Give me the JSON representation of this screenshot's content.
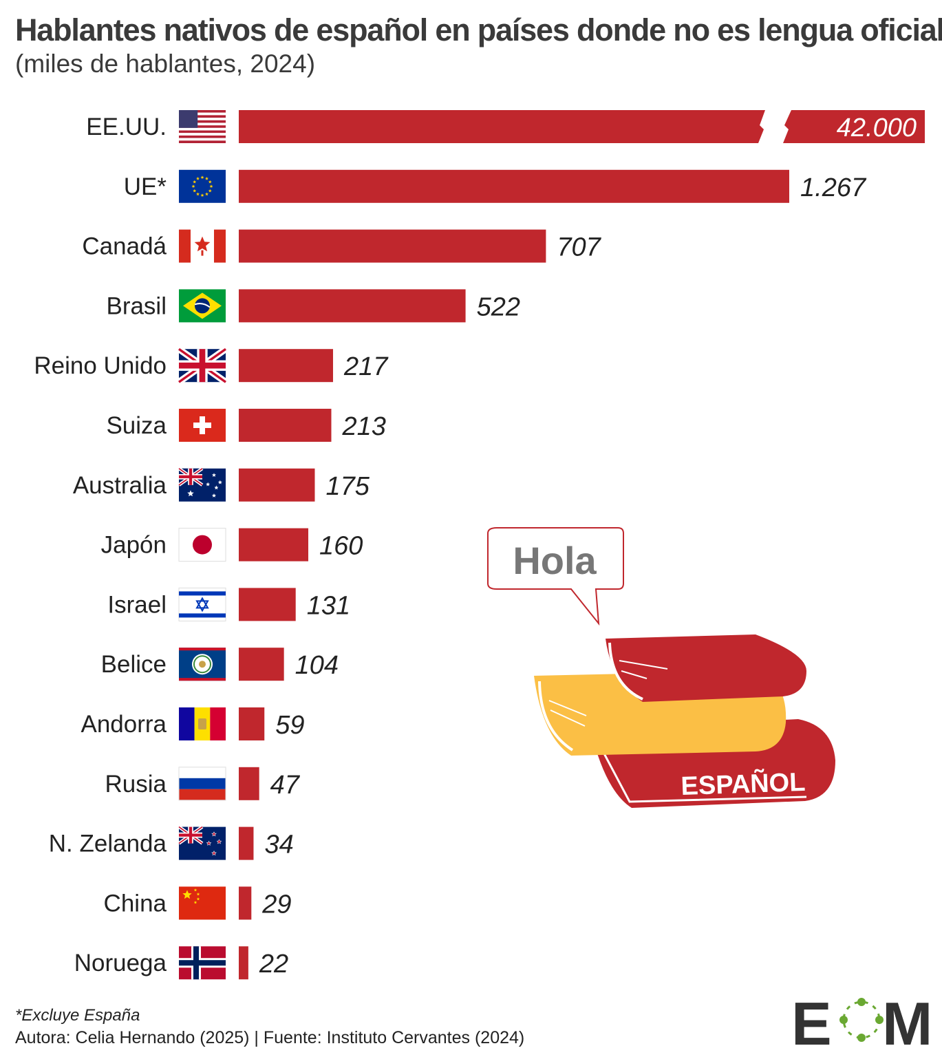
{
  "header": {
    "title": "Hablantes nativos de español en países donde no es lengua oficial",
    "subtitle": "(miles de hablantes, 2024)"
  },
  "chart_data": {
    "type": "bar",
    "orientation": "horizontal",
    "categories": [
      "EE.UU.",
      "UE*",
      "Canadá",
      "Brasil",
      "Reino Unido",
      "Suiza",
      "Australia",
      "Japón",
      "Israel",
      "Belice",
      "Andorra",
      "Rusia",
      "N. Zelanda",
      "China",
      "Noruega"
    ],
    "values": [
      42000,
      1267,
      707,
      522,
      217,
      213,
      175,
      160,
      131,
      104,
      59,
      47,
      34,
      29,
      22
    ],
    "value_labels": [
      "42.000",
      "1.267",
      "707",
      "522",
      "217",
      "213",
      "175",
      "160",
      "131",
      "104",
      "59",
      "47",
      "34",
      "29",
      "22"
    ],
    "flags": [
      "us-flag-icon",
      "eu-flag-icon",
      "canada-flag-icon",
      "brazil-flag-icon",
      "uk-flag-icon",
      "switzerland-flag-icon",
      "australia-flag-icon",
      "japan-flag-icon",
      "israel-flag-icon",
      "belize-flag-icon",
      "andorra-flag-icon",
      "russia-flag-icon",
      "new-zealand-flag-icon",
      "china-flag-icon",
      "norway-flag-icon"
    ],
    "broken_axis_category": "EE.UU.",
    "bar_color": "#c0272d",
    "xlim": [
      0,
      1267
    ]
  },
  "illustration": {
    "speech_text": "Hola",
    "book_text": "ESPAÑOL"
  },
  "footer": {
    "footnote": "*Excluye España",
    "credits": "Autora: Celia Hernando (2025) | Fuente: Instituto Cervantes (2024)",
    "logo_text": "EOM"
  },
  "colors": {
    "bar": "#c0272d",
    "book_yellow": "#fbbf45",
    "logo_green": "#6aa832"
  }
}
